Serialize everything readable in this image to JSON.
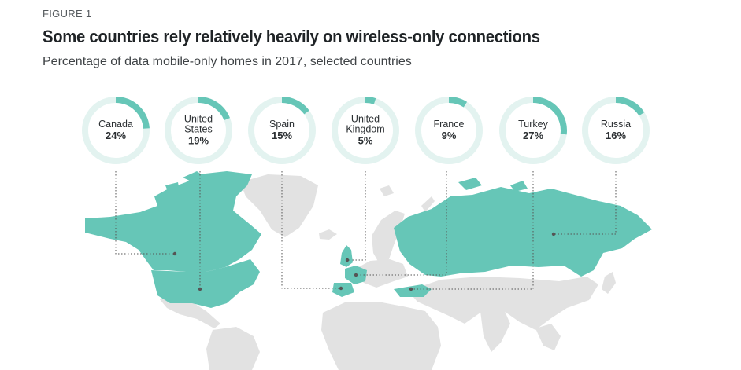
{
  "figure_label": "FIGURE 1",
  "title": "Some countries rely relatively heavily on wireless-only connections",
  "subtitle": "Percentage of data mobile-only homes in 2017, selected countries",
  "colors": {
    "accent": "#66c6b7",
    "track": "#e3f3f0",
    "land": "#e2e2e2",
    "connector": "#555555"
  },
  "chart_data": {
    "type": "pie",
    "title": "Some countries rely relatively heavily on wireless-only connections",
    "subtitle": "Percentage of data mobile-only homes in 2017, selected countries",
    "unit": "%",
    "countries": [
      {
        "name_lines": [
          "Canada"
        ],
        "value": 24,
        "label": "24%"
      },
      {
        "name_lines": [
          "United",
          "States"
        ],
        "value": 19,
        "label": "19%"
      },
      {
        "name_lines": [
          "Spain"
        ],
        "value": 15,
        "label": "15%"
      },
      {
        "name_lines": [
          "United",
          "Kingdom"
        ],
        "value": 5,
        "label": "5%"
      },
      {
        "name_lines": [
          "France"
        ],
        "value": 9,
        "label": "9%"
      },
      {
        "name_lines": [
          "Turkey"
        ],
        "value": 27,
        "label": "27%"
      },
      {
        "name_lines": [
          "Russia"
        ],
        "value": 16,
        "label": "16%"
      }
    ]
  }
}
